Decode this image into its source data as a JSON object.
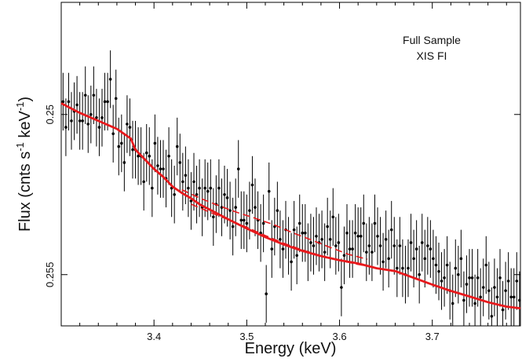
{
  "chart_data": {
    "type": "scatter",
    "xlabel": "Energy (keV)",
    "ylabel": "Flux (cnts s",
    "ylabel_sup1": "-1",
    "ylabel_unit": " keV",
    "ylabel_sup2": "-1",
    "ylabel_close": ")",
    "annotations": [
      "Full Sample",
      "XIS FI"
    ],
    "xlim": [
      3.3,
      3.795
    ],
    "ylim": [
      0.2465,
      0.2566
    ],
    "x_ticks": [
      3.4,
      3.5,
      3.6,
      3.7
    ],
    "x_tick_labels": [
      "3.4",
      "3.5",
      "3.6",
      "3.7"
    ],
    "y_ticks": [
      0.25,
      0.255
    ],
    "y_tick_labels": [
      "0.25",
      "0.255"
    ],
    "grid": false,
    "colors": {
      "data": "#000000",
      "model": "#e8191c"
    },
    "series": [
      {
        "kind": "points_with_errorbars",
        "x": [
          3.302,
          3.305,
          3.308,
          3.311,
          3.314,
          3.317,
          3.32,
          3.323,
          3.326,
          3.329,
          3.332,
          3.335,
          3.338,
          3.341,
          3.344,
          3.347,
          3.35,
          3.353,
          3.356,
          3.359,
          3.362,
          3.365,
          3.368,
          3.371,
          3.374,
          3.377,
          3.38,
          3.383,
          3.386,
          3.389,
          3.392,
          3.395,
          3.398,
          3.401,
          3.404,
          3.407,
          3.41,
          3.413,
          3.416,
          3.419,
          3.422,
          3.425,
          3.428,
          3.431,
          3.434,
          3.437,
          3.44,
          3.443,
          3.446,
          3.449,
          3.452,
          3.455,
          3.458,
          3.461,
          3.464,
          3.467,
          3.47,
          3.473,
          3.476,
          3.479,
          3.482,
          3.485,
          3.488,
          3.491,
          3.494,
          3.497,
          3.5,
          3.503,
          3.506,
          3.509,
          3.512,
          3.515,
          3.518,
          3.521,
          3.524,
          3.527,
          3.53,
          3.533,
          3.536,
          3.539,
          3.542,
          3.545,
          3.548,
          3.551,
          3.554,
          3.557,
          3.56,
          3.563,
          3.566,
          3.569,
          3.572,
          3.575,
          3.578,
          3.581,
          3.584,
          3.587,
          3.59,
          3.593,
          3.596,
          3.599,
          3.602,
          3.605,
          3.608,
          3.611,
          3.614,
          3.617,
          3.62,
          3.623,
          3.626,
          3.629,
          3.632,
          3.635,
          3.638,
          3.641,
          3.644,
          3.647,
          3.65,
          3.653,
          3.656,
          3.659,
          3.662,
          3.665,
          3.668,
          3.671,
          3.674,
          3.677,
          3.68,
          3.683,
          3.686,
          3.689,
          3.692,
          3.695,
          3.698,
          3.701,
          3.704,
          3.707,
          3.71,
          3.713,
          3.716,
          3.719,
          3.722,
          3.725,
          3.728,
          3.731,
          3.734,
          3.737,
          3.74,
          3.743,
          3.746,
          3.749,
          3.752,
          3.755,
          3.758,
          3.761,
          3.764,
          3.767,
          3.77,
          3.773,
          3.776,
          3.779,
          3.782,
          3.785,
          3.788,
          3.791,
          3.794
        ],
        "y": [
          0.2496,
          0.2504,
          0.2496,
          0.2502,
          0.2499,
          0.2497,
          0.2502,
          0.2502,
          0.2494,
          0.2503,
          0.25,
          0.2494,
          0.2501,
          0.2504,
          0.2501,
          0.2496,
          0.2496,
          0.2489,
          0.2506,
          0.2495,
          0.251,
          0.2509,
          0.2515,
          0.2503,
          0.2504,
          0.2511,
          0.2511,
          0.2513,
          0.2513,
          0.2521,
          0.2512,
          0.2513,
          0.2523,
          0.2509,
          0.2516,
          0.2517,
          0.2517,
          0.252,
          0.2513,
          0.2523,
          0.2525,
          0.251,
          0.2515,
          0.2521,
          0.2519,
          0.2523,
          0.2527,
          0.2521,
          0.2525,
          0.2523,
          0.2529,
          0.2523,
          0.2524,
          0.2523,
          0.2532,
          0.2528,
          0.2523,
          0.2529,
          0.2525,
          0.2526,
          0.253,
          0.2535,
          0.2529,
          0.2517,
          0.2533,
          0.2533,
          0.2534,
          0.253,
          0.2522,
          0.2529,
          0.2533,
          0.2537,
          0.2534,
          0.2556,
          0.2524,
          0.2542,
          0.2535,
          0.253,
          0.2539,
          0.2542,
          0.2536,
          0.2541,
          0.2546,
          0.2536,
          0.2544,
          0.2534,
          0.2537,
          0.2537,
          0.2543,
          0.254,
          0.2541,
          0.2538,
          0.254,
          0.2539,
          0.2543,
          0.2535,
          0.2539,
          0.2532,
          0.2541,
          0.254,
          0.2554,
          0.2544,
          0.2537,
          0.2542,
          0.2542,
          0.2537,
          0.2538,
          0.2538,
          0.2534,
          0.2543,
          0.2541,
          0.2543,
          0.2534,
          0.2538,
          0.2541,
          0.2546,
          0.2539,
          0.2545,
          0.2536,
          0.2541,
          0.2548,
          0.2541,
          0.2548,
          0.255,
          0.2548,
          0.254,
          0.2545,
          0.2542,
          0.255,
          0.254,
          0.2545,
          0.2541,
          0.2542,
          0.2545,
          0.2547,
          0.2549,
          0.2552,
          0.2551,
          0.2547,
          0.2555,
          0.2559,
          0.2548,
          0.255,
          0.2545,
          0.2558,
          0.2553,
          0.2551,
          0.2551,
          0.2559,
          0.2551,
          0.2557,
          0.2554,
          0.2547,
          0.2555,
          0.2563,
          0.2554,
          0.2557,
          0.2551,
          0.2561,
          0.2555,
          0.2552,
          0.2557,
          0.2557,
          0.2552,
          0.2558
        ],
        "yerr": 0.0009
      },
      {
        "kind": "model_line",
        "x": [
          3.3,
          3.32,
          3.34,
          3.36,
          3.375,
          3.38,
          3.39,
          3.4,
          3.41,
          3.42,
          3.43,
          3.44,
          3.45,
          3.46,
          3.47,
          3.48,
          3.5,
          3.52,
          3.54,
          3.56,
          3.58,
          3.6,
          3.62,
          3.64,
          3.66,
          3.68,
          3.7,
          3.72,
          3.74,
          3.76,
          3.78,
          3.795
        ],
        "y": [
          0.24965,
          0.24995,
          0.2502,
          0.25045,
          0.25075,
          0.2511,
          0.2514,
          0.2517,
          0.25195,
          0.25225,
          0.25245,
          0.25262,
          0.25282,
          0.25297,
          0.25312,
          0.25327,
          0.25356,
          0.25383,
          0.25406,
          0.25426,
          0.25442,
          0.25455,
          0.25465,
          0.2548,
          0.25489,
          0.2551,
          0.25531,
          0.25551,
          0.25568,
          0.25586,
          0.256,
          0.25605
        ]
      },
      {
        "kind": "dashed_line_upper",
        "x": [
          3.43,
          3.45,
          3.47,
          3.49,
          3.51,
          3.53,
          3.55,
          3.57,
          3.59,
          3.61,
          3.63
        ],
        "y": [
          0.25235,
          0.25262,
          0.25285,
          0.25306,
          0.25325,
          0.25345,
          0.2537,
          0.25392,
          0.25415,
          0.25437,
          0.25452
        ]
      },
      {
        "kind": "dashed_line_lower",
        "x": [
          3.44,
          3.46,
          3.48,
          3.5,
          3.52,
          3.54,
          3.56,
          3.58,
          3.6,
          3.62,
          3.64
        ],
        "y": [
          0.2528,
          0.25305,
          0.25328,
          0.25352,
          0.25378,
          0.25402,
          0.25423,
          0.25441,
          0.25456,
          0.25468,
          0.25478
        ]
      }
    ]
  }
}
